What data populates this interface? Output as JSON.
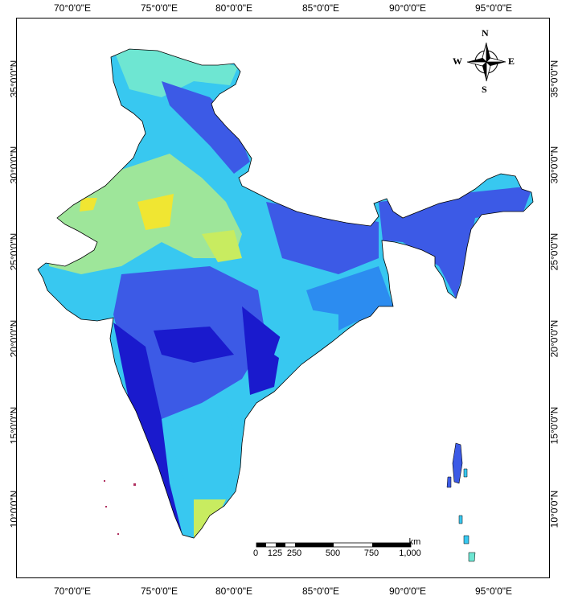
{
  "axes": {
    "lon_labels": [
      "70°0'0\"E",
      "75°0'0\"E",
      "80°0'0\"E",
      "85°0'0\"E",
      "90°0'0\"E",
      "95°0'0\"E"
    ],
    "lat_labels": [
      "35°0'0\"N",
      "30°0'0\"N",
      "25°0'0\"N",
      "20°0'0\"N",
      "15°0'0\"N",
      "10°0'0\"N"
    ]
  },
  "compass": {
    "n": "N",
    "s": "S",
    "e": "E",
    "w": "W"
  },
  "scale_bar": {
    "unit": "km",
    "labels": [
      "0",
      "125",
      "250",
      "500",
      "750",
      "1,000"
    ]
  },
  "colors": {
    "deep_blue": "#1a1acd",
    "blue": "#3c5ae6",
    "mid_blue": "#2c8cf0",
    "cyan": "#3cd2f0",
    "aqua": "#6ee6d2",
    "light_green": "#a8ec8c",
    "yellow": "#f0e632"
  }
}
